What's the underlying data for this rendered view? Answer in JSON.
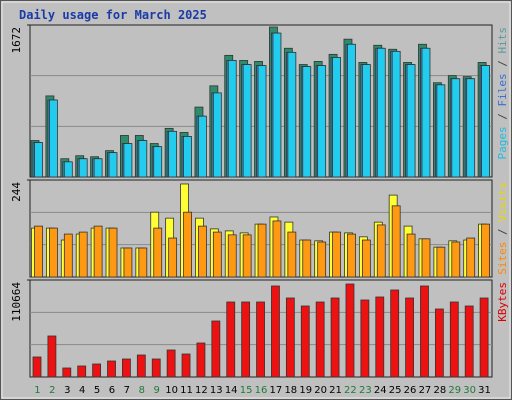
{
  "chart_data": [
    {
      "type": "bar",
      "title": "Daily usage for March 2025",
      "ylim": [
        0,
        1672
      ],
      "yticks": [
        1672
      ],
      "series": [
        {
          "name": "Hits",
          "color": "#2e8b6e",
          "legend_color": "#5f9a9a",
          "values": [
            401,
            892,
            201,
            234,
            223,
            290,
            457,
            457,
            368,
            535,
            490,
            769,
            1003,
            1338,
            1282,
            1271,
            1650,
            1416,
            1237,
            1271,
            1349,
            1516,
            1260,
            1449,
            1405,
            1260,
            1460,
            1037,
            1115,
            1104,
            1260
          ]
        },
        {
          "name": "Files",
          "color": "#3a8fd0",
          "legend_color": "#3a6fd0",
          "values": [
            379,
            847,
            167,
            201,
            201,
            268,
            368,
            401,
            334,
            502,
            446,
            669,
            925,
            1282,
            1237,
            1226,
            1583,
            1371,
            1215,
            1226,
            1315,
            1460,
            1237,
            1416,
            1382,
            1237,
            1416,
            1014,
            1081,
            1081,
            1226
          ]
        },
        {
          "name": "Pages",
          "color": "#22ccee",
          "legend_color": "#22bbdd",
          "values": [
            379,
            847,
            167,
            201,
            201,
            268,
            368,
            401,
            334,
            502,
            446,
            669,
            925,
            1282,
            1237,
            1226,
            1583,
            1371,
            1215,
            1226,
            1315,
            1460,
            1237,
            1416,
            1382,
            1237,
            1416,
            1014,
            1081,
            1081,
            1226
          ]
        }
      ]
    },
    {
      "type": "bar",
      "ylim": [
        0,
        244
      ],
      "yticks": [
        244
      ],
      "series": [
        {
          "name": "Visits",
          "color": "#ffff33",
          "legend_color": "#e8d800",
          "values": [
            123,
            123,
            93,
            108,
            123,
            123,
            73,
            73,
            163,
            148,
            234,
            148,
            121,
            116,
            111,
            133,
            151,
            138,
            93,
            91,
            113,
            111,
            101,
            138,
            206,
            128,
            96,
            75,
            91,
            93,
            133
          ]
        },
        {
          "name": "Sites",
          "color": "#ff9911",
          "legend_color": "#ff8800",
          "values": [
            128,
            123,
            108,
            113,
            128,
            123,
            73,
            73,
            123,
            98,
            163,
            128,
            113,
            106,
            106,
            133,
            141,
            113,
            93,
            88,
            113,
            108,
            93,
            131,
            179,
            108,
            96,
            75,
            88,
            98,
            133
          ]
        }
      ]
    },
    {
      "type": "bar",
      "ylim": [
        0,
        110664
      ],
      "yticks": [
        110664
      ],
      "categories": [
        "1",
        "2",
        "3",
        "4",
        "5",
        "6",
        "7",
        "8",
        "9",
        "10",
        "11",
        "12",
        "13",
        "14",
        "15",
        "16",
        "17",
        "18",
        "19",
        "20",
        "21",
        "22",
        "23",
        "24",
        "25",
        "26",
        "27",
        "28",
        "29",
        "30",
        "31"
      ],
      "category_colors": [
        "#1f7a3a",
        "#1f7a3a",
        "#000000",
        "#000000",
        "#000000",
        "#000000",
        "#000000",
        "#1f7a3a",
        "#1f7a3a",
        "#000000",
        "#000000",
        "#000000",
        "#000000",
        "#000000",
        "#1f7a3a",
        "#1f7a3a",
        "#000000",
        "#000000",
        "#000000",
        "#000000",
        "#000000",
        "#1f7a3a",
        "#1f7a3a",
        "#000000",
        "#000000",
        "#000000",
        "#000000",
        "#000000",
        "#1f7a3a",
        "#1f7a3a",
        "#000000"
      ],
      "series": [
        {
          "name": "KBytes",
          "color": "#ee1111",
          "legend_color": "#dd0000",
          "values": [
            22818,
            46777,
            10268,
            12550,
            14832,
            18254,
            20536,
            25100,
            20536,
            30804,
            26241,
            38791,
            63890,
            85568,
            85568,
            85568,
            103822,
            90131,
            81004,
            85568,
            90131,
            106104,
            87849,
            91272,
            99258,
            90131,
            103822,
            77581,
            85568,
            81004,
            90131
          ]
        }
      ]
    }
  ]
}
